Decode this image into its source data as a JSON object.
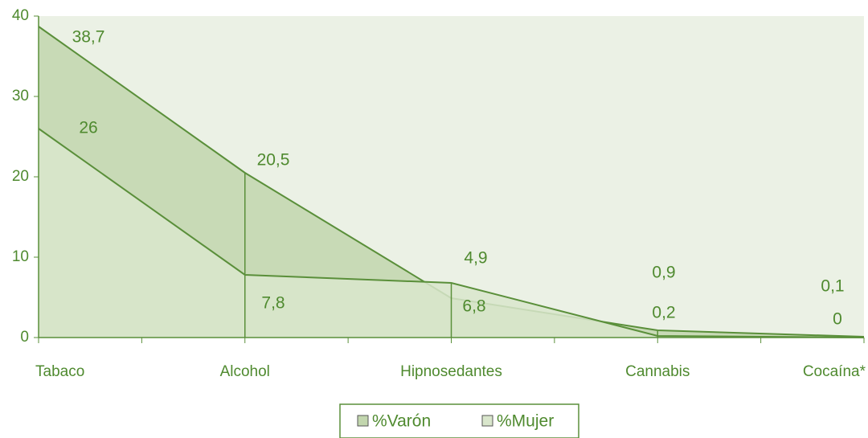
{
  "chart_data": {
    "type": "area",
    "categories": [
      "Tabaco",
      "Alcohol",
      "Hipnosedantes",
      "Cannabis",
      "Cocaína*"
    ],
    "series": [
      {
        "name": "%Varón",
        "color": "#c2d6ae",
        "values": [
          38.7,
          20.5,
          4.9,
          0.9,
          0.1
        ],
        "value_labels": [
          "38,7",
          "20,5",
          "4,9",
          "0,9",
          "0,1"
        ]
      },
      {
        "name": "%Mujer",
        "color": "#d9e6cc",
        "values": [
          26,
          7.8,
          6.8,
          0.2,
          0
        ],
        "value_labels": [
          "26",
          "7,8",
          "6,8",
          "0,2",
          "0"
        ]
      }
    ],
    "ylim": [
      0,
      40
    ],
    "yticks": [
      0,
      10,
      20,
      30,
      40
    ],
    "legend": "bottom"
  }
}
